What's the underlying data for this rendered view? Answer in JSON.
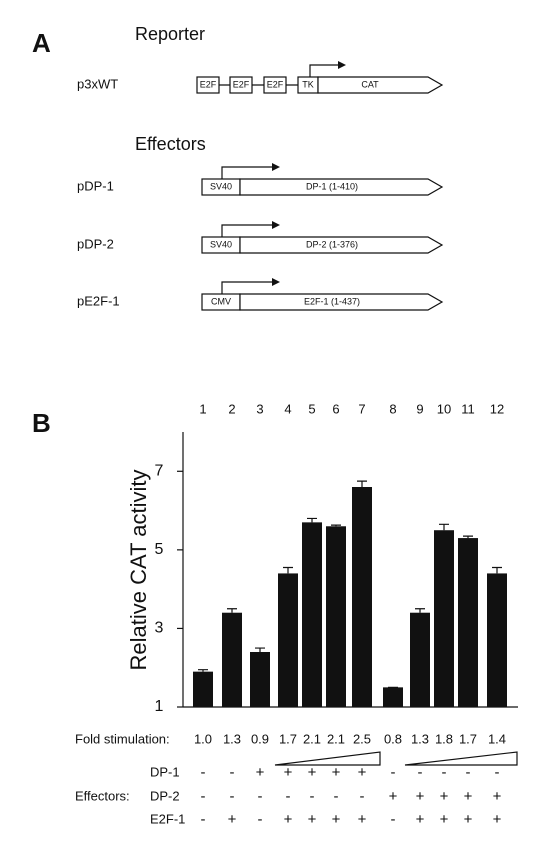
{
  "diagram": {
    "panel_label": "A",
    "reporter_heading": "Reporter",
    "reporter": {
      "name": "p3xWT",
      "elements": [
        "E2F",
        "E2F",
        "E2F",
        "TK"
      ],
      "gene": "CAT"
    },
    "effectors_heading": "Effectors",
    "effectors": [
      {
        "name": "pDP-1",
        "promoter": "SV40",
        "gene": "DP-1 (1-410)"
      },
      {
        "name": "pDP-2",
        "promoter": "SV40",
        "gene": "DP-2 (1-376)"
      },
      {
        "name": "pE2F-1",
        "promoter": "CMV",
        "gene": "E2F-1 (1-437)"
      }
    ]
  },
  "chart_data": {
    "type": "bar",
    "panel_label": "B",
    "y_label": "Relative CAT activity",
    "categories": [
      "1",
      "2",
      "3",
      "4",
      "5",
      "6",
      "7",
      "8",
      "9",
      "10",
      "11",
      "12"
    ],
    "values": [
      1.9,
      3.4,
      2.4,
      4.4,
      5.7,
      5.6,
      6.6,
      1.5,
      3.4,
      5.5,
      5.3,
      4.4
    ],
    "errors": [
      0.05,
      0.1,
      0.1,
      0.15,
      0.1,
      0.03,
      0.15,
      0,
      0.1,
      0.15,
      0.05,
      0.15
    ],
    "color": "#111111",
    "ylim": [
      1,
      8
    ],
    "yticks": [
      1,
      3,
      5,
      7
    ],
    "fold_label": "Fold stimulation:",
    "fold_values": [
      "1.0",
      "1.3",
      "0.9",
      "1.7",
      "2.1",
      "2.1",
      "2.5",
      "0.8",
      "1.3",
      "1.8",
      "1.7",
      "1.4"
    ],
    "effectors_label": "Effectors:",
    "effector_rows": [
      {
        "name": "DP-1",
        "signs": [
          "-",
          "-",
          "+",
          "+",
          "+",
          "+",
          "+",
          "-",
          "-",
          "-",
          "-",
          "-"
        ]
      },
      {
        "name": "DP-2",
        "signs": [
          "-",
          "-",
          "-",
          "-",
          "-",
          "-",
          "-",
          "+",
          "+",
          "+",
          "+",
          "+"
        ]
      },
      {
        "name": "E2F-1",
        "signs": [
          "-",
          "+",
          "-",
          "+",
          "+",
          "+",
          "+",
          "-",
          "+",
          "+",
          "+",
          "+"
        ]
      }
    ]
  }
}
